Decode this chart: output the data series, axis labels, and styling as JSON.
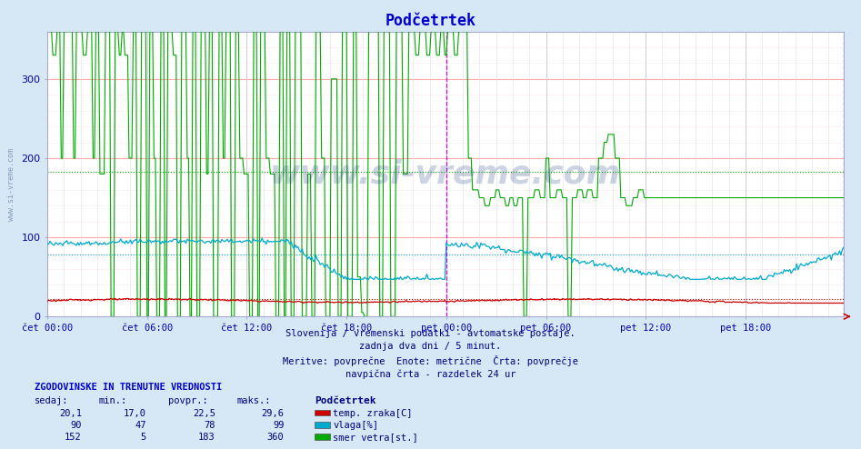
{
  "title": "Podčetrtek",
  "bg_color": "#d6e8f5",
  "plot_bg_color": "#ffffff",
  "title_color": "#0000cc",
  "axis_label_color": "#0000aa",
  "text_color": "#000080",
  "xlabel_ticks": [
    "čet 00:00",
    "čet 06:00",
    "čet 12:00",
    "čet 18:00",
    "pet 00:00",
    "pet 06:00",
    "pet 12:00",
    "pet 18:00"
  ],
  "n_points": 576,
  "temp_color": "#cc0000",
  "vlaga_color": "#00aacc",
  "wind_color": "#00aa00",
  "red_hline": 22.5,
  "blue_hline": 78.0,
  "green_hline": 183.0,
  "subtitle1": "Slovenija / vremenski podatki - avtomatske postaje.",
  "subtitle2": "zadnja dva dni / 5 minut.",
  "subtitle3": "Meritve: povprečne  Enote: metrične  Črta: povprečje",
  "subtitle4": "navpična črta - razdelek 24 ur",
  "legend_title": "Podčetrtek",
  "legend_entries": [
    "temp. zraka[C]",
    "vlaga[%]",
    "smer vetra[st.]"
  ],
  "legend_colors": [
    "#cc0000",
    "#00aacc",
    "#00aa00"
  ],
  "table_header": [
    "sedaj:",
    "min.:",
    "povpr.:",
    "maks.:"
  ],
  "table_data": [
    [
      "20,1",
      "17,0",
      "22,5",
      "29,6"
    ],
    [
      "90",
      "47",
      "78",
      "99"
    ],
    [
      "152",
      "5",
      "183",
      "360"
    ]
  ],
  "watermark": "www.si-vreme.com",
  "vline_color": "#dd00dd",
  "hgrid_major_color": "#ffaaaa",
  "hgrid_minor_color": "#ffe8e8",
  "vgrid_color": "#ddddee"
}
